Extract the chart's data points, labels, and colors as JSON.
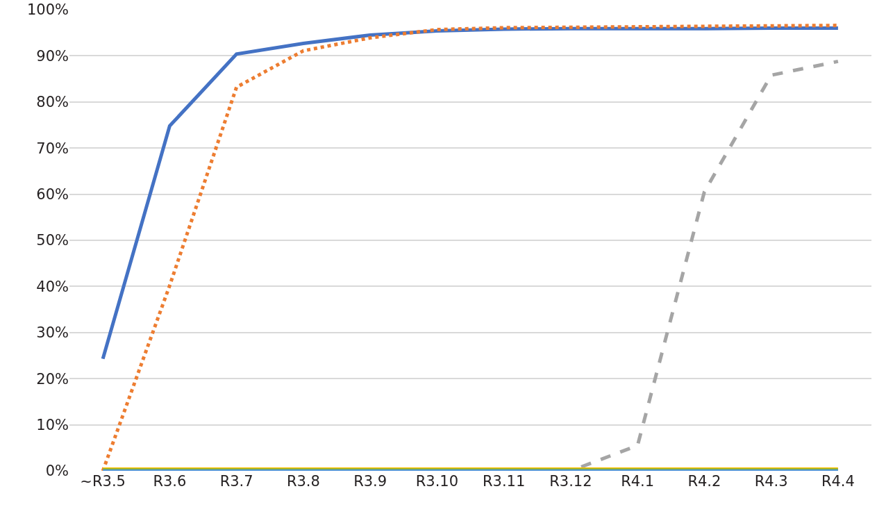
{
  "chart_data": {
    "type": "line",
    "categories": [
      "~R3.5",
      "R3.6",
      "R3.7",
      "R3.8",
      "R3.9",
      "R3.10",
      "R3.11",
      "R3.12",
      "R4.1",
      "R4.2",
      "R4.3",
      "R4.4"
    ],
    "series": [
      {
        "color": "#4472c4",
        "line_style": "solid",
        "values": [
          24.3,
          74.8,
          90.4,
          92.7,
          94.5,
          95.4,
          95.8,
          95.9,
          95.9,
          95.9,
          96.0,
          96.0
        ]
      },
      {
        "color": "#ed7d31",
        "line_style": "dotted",
        "values": [
          0,
          40.2,
          83.2,
          91.1,
          93.9,
          95.7,
          96.1,
          96.2,
          96.3,
          96.4,
          96.5,
          96.6
        ]
      },
      {
        "color": "#a5a5a5",
        "line_style": "dashed",
        "values": [
          0,
          0,
          0,
          0,
          0,
          0,
          0,
          0,
          5.5,
          60.5,
          85.8,
          88.8
        ]
      },
      {
        "color": "#ffc000",
        "line_style": "solid",
        "values": [
          0,
          0,
          0,
          0,
          0,
          0,
          0,
          0,
          0,
          0,
          0,
          0
        ]
      },
      {
        "color": "#70ad47",
        "line_style": "solid",
        "values": [
          0,
          0,
          0,
          0,
          0,
          0,
          0,
          0,
          0,
          0,
          0,
          0
        ]
      },
      {
        "color": "#5b9bd5",
        "line_style": "solid",
        "values": [
          0,
          0,
          0,
          0,
          0,
          0,
          0,
          0,
          0,
          0,
          0,
          0
        ]
      }
    ],
    "ylim": [
      0,
      100
    ],
    "yticks": [
      {
        "value": 0,
        "label": "0%"
      },
      {
        "value": 10,
        "label": "10%"
      },
      {
        "value": 20,
        "label": "20%"
      },
      {
        "value": 30,
        "label": "30%"
      },
      {
        "value": 40,
        "label": "40%"
      },
      {
        "value": 50,
        "label": "50%"
      },
      {
        "value": 60,
        "label": "60%"
      },
      {
        "value": 70,
        "label": "70%"
      },
      {
        "value": 80,
        "label": "80%"
      },
      {
        "value": 90,
        "label": "90%"
      },
      {
        "value": 100,
        "label": "100%"
      }
    ],
    "grid": "y",
    "marker": "none"
  }
}
